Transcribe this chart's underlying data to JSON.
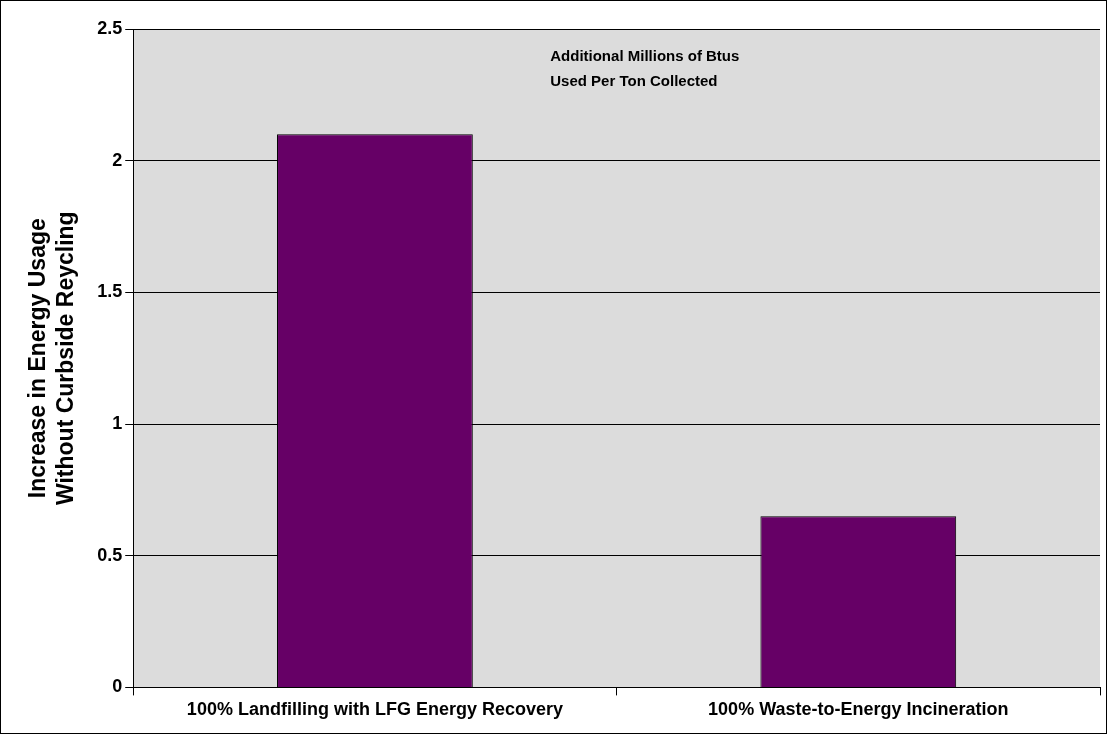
{
  "chart_data": {
    "type": "bar",
    "ylabel": "Increase in Energy Usage\nWithout Curbside Reycling",
    "categories": [
      "100% Landfilling with LFG Energy Recovery",
      "100% Waste-to-Energy Incineration"
    ],
    "values": [
      2.1,
      0.65
    ],
    "color": "#660066",
    "ylim": [
      0,
      2.5
    ],
    "yticks": [
      0,
      0.5,
      1,
      1.5,
      2,
      2.5
    ],
    "grid": "y",
    "annotations": [
      "Additional Millions of Btus\nUsed Per Ton Collected"
    ]
  }
}
